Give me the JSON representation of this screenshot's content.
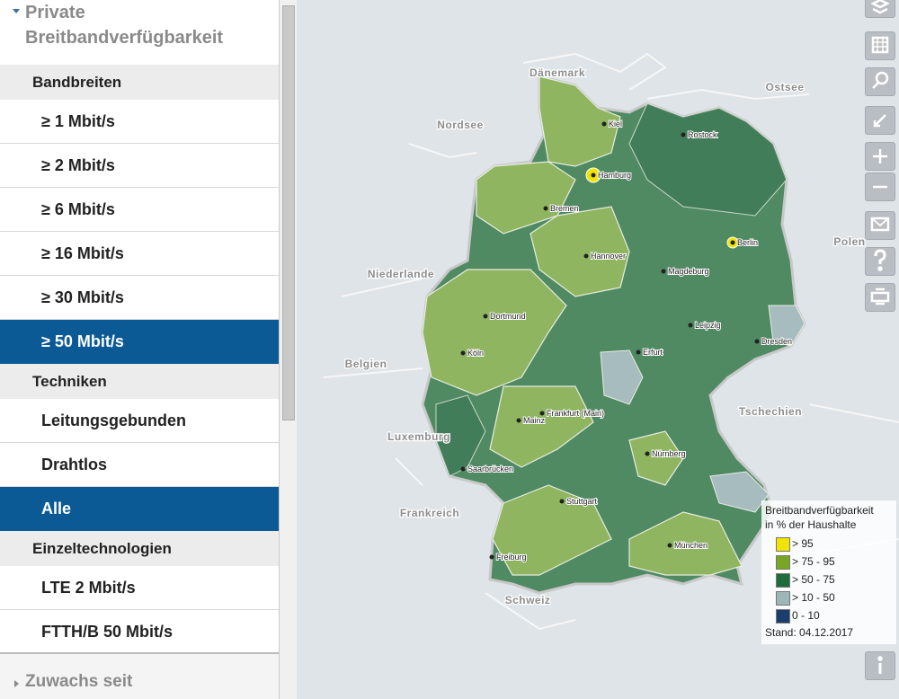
{
  "panel": {
    "title": "Private Breitbandverfügbarkeit",
    "groups": [
      {
        "header": "Bandbreiten",
        "items": [
          {
            "label": "≥ 1 Mbit/s",
            "selected": false
          },
          {
            "label": "≥ 2 Mbit/s",
            "selected": false
          },
          {
            "label": "≥ 6 Mbit/s",
            "selected": false
          },
          {
            "label": "≥ 16 Mbit/s",
            "selected": false
          },
          {
            "label": "≥ 30 Mbit/s",
            "selected": false
          },
          {
            "label": "≥ 50 Mbit/s",
            "selected": true
          }
        ]
      },
      {
        "header": "Techniken",
        "items": [
          {
            "label": "Leitungsgebunden",
            "selected": false
          },
          {
            "label": "Drahtlos",
            "selected": false
          },
          {
            "label": "Alle",
            "selected": true
          }
        ]
      },
      {
        "header": "Einzeltechnologien",
        "items": [
          {
            "label": "LTE 2 Mbit/s",
            "selected": false
          },
          {
            "label": "FTTH/B 50 Mbit/s",
            "selected": false
          }
        ]
      }
    ],
    "collapsed_section": "Zuwachs seit"
  },
  "map": {
    "regions": [
      "Dänemark",
      "Ostsee",
      "Nordsee",
      "Niederlande",
      "Polen",
      "Belgien",
      "Tschechien",
      "Luxemburg",
      "Frankreich",
      "Schweiz"
    ],
    "cities": [
      "Kiel",
      "Hamburg",
      "Bremen",
      "Hannover",
      "Rostock",
      "Berlin",
      "Magdeburg",
      "Dortmund",
      "Leipzig",
      "Dresden",
      "Erfurt",
      "Köln",
      "Mainz",
      "Frankfurt (Main)",
      "Nürnberg",
      "Saarbrücken",
      "Stuttgart",
      "München",
      "Freiburg"
    ]
  },
  "legend": {
    "title": "Breitbandverfügbarkeit",
    "subtitle": "in % der Haushalte",
    "entries": [
      {
        "label": "> 95",
        "color": "#f0e500"
      },
      {
        "label": "> 75 - 95",
        "color": "#78a622"
      },
      {
        "label": "> 50 - 75",
        "color": "#1e6b3c"
      },
      {
        "label": "> 10 - 50",
        "color": "#9db6b6"
      },
      {
        "label": "0 - 10",
        "color": "#1c3e6c"
      }
    ],
    "date": "Stand: 04.12.2017"
  }
}
